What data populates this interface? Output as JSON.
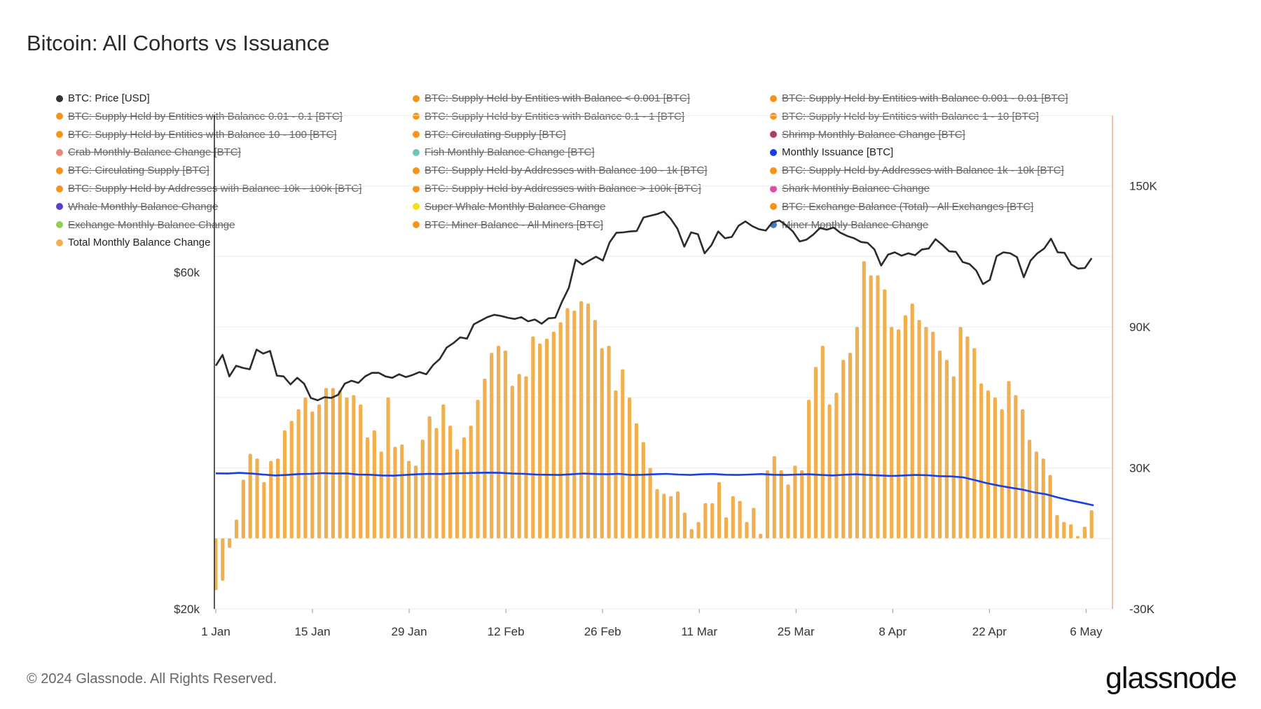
{
  "title": "Bitcoin: All Cohorts vs Issuance",
  "footer": "© 2024 Glassnode. All Rights Reserved.",
  "brand": "glassnode",
  "legend": [
    {
      "label": "BTC: Price [USD]",
      "color": "#333333",
      "active": true
    },
    {
      "label": "BTC: Supply Held by Entities with Balance < 0.001 [BTC]",
      "color": "#f7931a",
      "active": false
    },
    {
      "label": "BTC: Supply Held by Entities with Balance 0.001 - 0.01 [BTC]",
      "color": "#f7931a",
      "active": false
    },
    {
      "label": "BTC: Supply Held by Entities with Balance 0.01 - 0.1 [BTC]",
      "color": "#f7931a",
      "active": false
    },
    {
      "label": "BTC: Supply Held by Entities with Balance 0.1 - 1 [BTC]",
      "color": "#f7931a",
      "active": false
    },
    {
      "label": "BTC: Supply Held by Entities with Balance 1 - 10 [BTC]",
      "color": "#f7931a",
      "active": false
    },
    {
      "label": "BTC: Supply Held by Entities with Balance 10 - 100 [BTC]",
      "color": "#f7931a",
      "active": false
    },
    {
      "label": "BTC: Circulating Supply [BTC]",
      "color": "#f7931a",
      "active": false
    },
    {
      "label": "Shrimp Monthly Balance Change [BTC]",
      "color": "#b03a6b",
      "active": false
    },
    {
      "label": "Crab Monthly Balance Change [BTC]",
      "color": "#e8877a",
      "active": false
    },
    {
      "label": "Fish Monthly Balance Change [BTC]",
      "color": "#6ec6b8",
      "active": false
    },
    {
      "label": "Monthly Issuance [BTC]",
      "color": "#1a3fe8",
      "active": true
    },
    {
      "label": "BTC: Circulating Supply [BTC]",
      "color": "#f7931a",
      "active": false
    },
    {
      "label": "BTC: Supply Held by Addresses with Balance 100 - 1k [BTC]",
      "color": "#f7931a",
      "active": false
    },
    {
      "label": "BTC: Supply Held by Addresses with Balance 1k - 10k [BTC]",
      "color": "#f7931a",
      "active": false
    },
    {
      "label": "BTC: Supply Held by Addresses with Balance 10k - 100k [BTC]",
      "color": "#f7931a",
      "active": false
    },
    {
      "label": "BTC: Supply Held by Addresses with Balance > 100k [BTC]",
      "color": "#f7931a",
      "active": false
    },
    {
      "label": "Shark Monthly Balance Change",
      "color": "#e04aa8",
      "active": false
    },
    {
      "label": "Whale Monthly Balance Change",
      "color": "#5b3fc4",
      "active": false
    },
    {
      "label": "Super Whale Monthly Balance Change",
      "color": "#f2e21a",
      "active": false
    },
    {
      "label": "BTC: Exchange Balance (Total) - All Exchanges [BTC]",
      "color": "#f7931a",
      "active": false
    },
    {
      "label": "Exchange Monthly Balance Change",
      "color": "#8fd14f",
      "active": false
    },
    {
      "label": "BTC: Miner Balance - All Miners [BTC]",
      "color": "#f7931a",
      "active": false
    },
    {
      "label": "Miner Monthly Balance Change",
      "color": "#4a78c2",
      "active": false
    },
    {
      "label": "Total Monthly Balance Change",
      "color": "#f0b050",
      "active": true
    }
  ],
  "chart_data": {
    "type": "bar",
    "x_ticks": [
      "1 Jan",
      "15 Jan",
      "29 Jan",
      "12 Feb",
      "26 Feb",
      "11 Mar",
      "25 Mar",
      "8 Apr",
      "22 Apr",
      "6 May"
    ],
    "left_axis": {
      "ticks": [
        "$20k",
        "$60k"
      ],
      "scale": "log",
      "range": [
        20000,
        100000
      ]
    },
    "right_axis": {
      "ticks": [
        "-30K",
        "30K",
        "90K",
        "150K"
      ],
      "range": [
        -30000,
        180000
      ]
    },
    "dates_start": "2024-01-01",
    "series": [
      {
        "name": "Total Monthly Balance Change",
        "axis": "right",
        "type": "bar",
        "color": "#f0b050",
        "values": [
          -22000,
          -18000,
          -4000,
          8000,
          25000,
          36000,
          34000,
          24000,
          33000,
          34000,
          46000,
          50000,
          55000,
          60000,
          54000,
          57000,
          64000,
          64000,
          63000,
          60000,
          61000,
          57000,
          43000,
          46000,
          37000,
          60000,
          39000,
          40000,
          33000,
          31000,
          42000,
          52000,
          47000,
          57000,
          48000,
          38000,
          43000,
          48000,
          59000,
          68000,
          79000,
          82000,
          80000,
          65000,
          70000,
          69000,
          86000,
          83000,
          85000,
          88000,
          92000,
          98000,
          97000,
          101000,
          100000,
          93000,
          81000,
          82000,
          63000,
          72000,
          60000,
          49000,
          41000,
          30000,
          21000,
          19000,
          18000,
          20000,
          11000,
          4000,
          7000,
          15000,
          15000,
          24000,
          9000,
          18000,
          16000,
          7000,
          13000,
          2000,
          29000,
          35000,
          29000,
          23000,
          31000,
          29000,
          59000,
          73000,
          82000,
          57000,
          62000,
          76000,
          79000,
          90000,
          118000,
          112000,
          112000,
          106000,
          90000,
          89000,
          95000,
          100000,
          93000,
          90000,
          88000,
          80000,
          76000,
          69000,
          90000,
          86000,
          81000,
          66000,
          63000,
          60000,
          55000,
          67000,
          61000,
          55000,
          42000,
          37000,
          34000,
          27000,
          10000,
          7000,
          6000,
          1000,
          5000,
          12000
        ]
      },
      {
        "name": "BTC: Price [USD]",
        "axis": "left",
        "type": "line",
        "color": "#2b2b2b",
        "values": [
          44200,
          45800,
          42700,
          44200,
          43900,
          43700,
          46600,
          46000,
          46400,
          42800,
          42700,
          41600,
          42500,
          41700,
          39800,
          39500,
          39900,
          39800,
          40200,
          41700,
          42100,
          41800,
          42700,
          43200,
          43200,
          42700,
          42500,
          43000,
          42600,
          42900,
          43300,
          43000,
          44300,
          45200,
          46900,
          47600,
          48500,
          48300,
          50600,
          51200,
          51800,
          52200,
          52000,
          51700,
          51500,
          51800,
          51100,
          51400,
          50700,
          51600,
          51700,
          54500,
          57000,
          62500,
          61500,
          62300,
          63100,
          62300,
          66100,
          68200,
          68300,
          68500,
          68600,
          71700,
          72100,
          72500,
          73100,
          71400,
          69100,
          65200,
          68300,
          67900,
          63800,
          65500,
          68500,
          67000,
          67300,
          69800,
          70800,
          69700,
          69000,
          68700,
          70600,
          71000,
          69900,
          68500,
          66300,
          66700,
          67800,
          69300,
          68900,
          69400,
          68200,
          67500,
          67000,
          66200,
          66000,
          64600,
          61300,
          63500,
          64000,
          63300,
          63800,
          63400,
          64600,
          64800,
          66800,
          65600,
          64200,
          64100,
          62000,
          61600,
          60300,
          57700,
          58500,
          63200,
          64000,
          63800,
          63000,
          59000,
          62300,
          63800,
          64800,
          66900,
          64000,
          63900,
          61500,
          60700,
          60800,
          62800
        ]
      },
      {
        "name": "Monthly Issuance [BTC]",
        "axis": "right",
        "type": "line",
        "color": "#1a3fe8",
        "values": [
          27700,
          27600,
          27900,
          27600,
          27200,
          26800,
          27000,
          27400,
          27500,
          27800,
          27600,
          27700,
          27200,
          27100,
          26800,
          26700,
          27000,
          27300,
          27500,
          27400,
          27700,
          27800,
          27900,
          28000,
          27900,
          27600,
          27500,
          27200,
          27100,
          27000,
          27300,
          27600,
          27400,
          27300,
          27500,
          27000,
          27100,
          27300,
          27500,
          27200,
          27000,
          27300,
          27400,
          27100,
          27000,
          27200,
          27400,
          27100,
          27000,
          27200,
          27300,
          27000,
          26800,
          27100,
          27300,
          27000,
          26800,
          26600,
          26800,
          27000,
          26900,
          26500,
          26400,
          26000,
          24800,
          23500,
          22500,
          21600,
          20800,
          19600,
          18800,
          17400,
          16200,
          15200,
          14100
        ]
      }
    ]
  }
}
